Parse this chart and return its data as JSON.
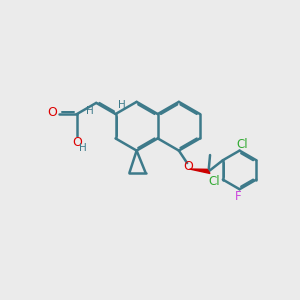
{
  "bg_color": "#ebebeb",
  "bond_color": "#3d7a8a",
  "bond_width": 1.8,
  "dbo": 0.055,
  "atom_colors": {
    "O": "#dd0000",
    "Cl": "#33aa33",
    "F": "#cc44dd",
    "H": "#3d7a8a",
    "C": "#3d7a8a",
    "wedge": "#cc0000"
  },
  "fsz": 8.5
}
